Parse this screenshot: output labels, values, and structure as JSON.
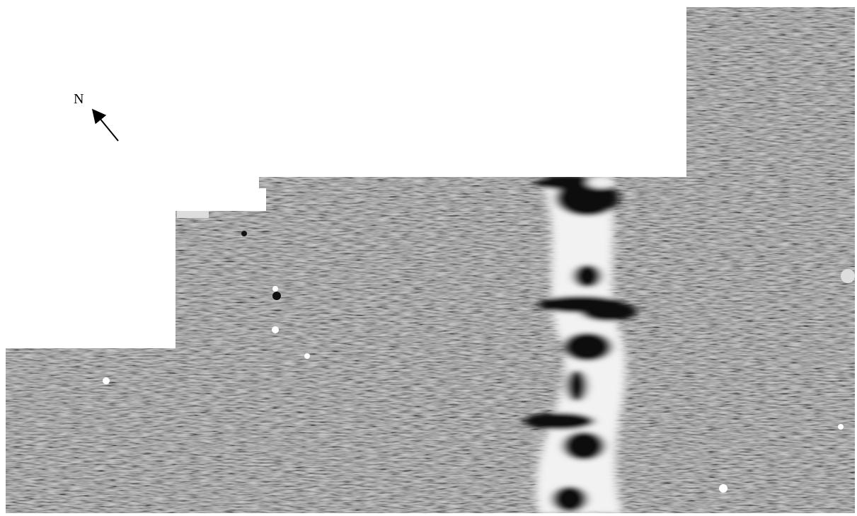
{
  "compass": {
    "label": "N"
  }
}
